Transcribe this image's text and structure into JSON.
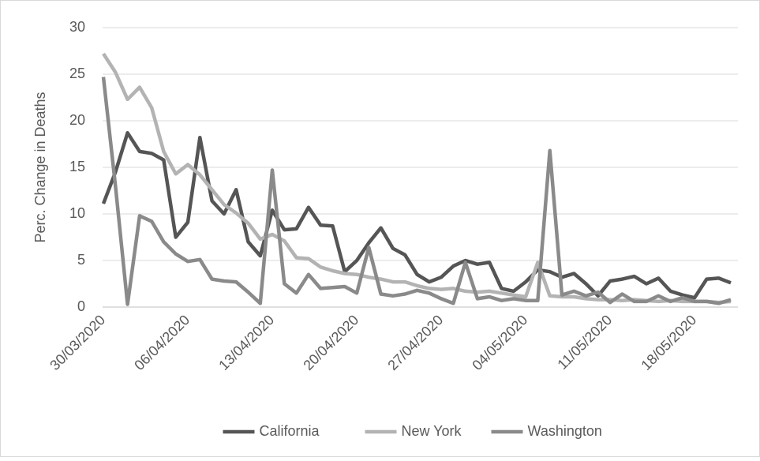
{
  "chart_data": {
    "type": "line",
    "y_label": "Perc. Change in Deaths",
    "categories": [
      "30/03/2020",
      null,
      null,
      null,
      null,
      null,
      null,
      "06/04/2020",
      null,
      null,
      null,
      null,
      null,
      null,
      "13/04/2020",
      null,
      null,
      null,
      null,
      null,
      null,
      "20/04/2020",
      null,
      null,
      null,
      null,
      null,
      null,
      "27/04/2020",
      null,
      null,
      null,
      null,
      null,
      null,
      "04/05/2020",
      null,
      null,
      null,
      null,
      null,
      null,
      "11/05/2020",
      null,
      null,
      null,
      null,
      null,
      null,
      "18/05/2020",
      null,
      null,
      null
    ],
    "series": [
      {
        "name": "California",
        "color": "#555555",
        "values": [
          11.1,
          14.5,
          18.7,
          16.7,
          16.5,
          15.8,
          7.5,
          9.1,
          18.2,
          11.4,
          10.0,
          12.6,
          7.0,
          5.5,
          10.4,
          8.3,
          8.4,
          10.7,
          8.8,
          8.7,
          3.8,
          5.0,
          6.9,
          8.5,
          6.3,
          5.6,
          3.5,
          2.7,
          3.2,
          4.4,
          5.0,
          4.6,
          4.8,
          2.0,
          1.7,
          2.7,
          4.0,
          3.8,
          3.2,
          3.6,
          2.5,
          1.2,
          2.8,
          3.0,
          3.3,
          2.5,
          3.1,
          1.7,
          1.3,
          1.0,
          3.0,
          3.1,
          2.6
        ]
      },
      {
        "name": "New York",
        "color": "#b3b3b3",
        "values": [
          27.2,
          25.2,
          22.3,
          23.6,
          21.4,
          16.7,
          14.3,
          15.3,
          14.2,
          12.6,
          11.0,
          10.1,
          9.0,
          7.3,
          7.8,
          7.1,
          5.3,
          5.2,
          4.3,
          3.9,
          3.6,
          3.5,
          3.2,
          3.0,
          2.7,
          2.7,
          2.3,
          2.0,
          1.9,
          2.0,
          1.7,
          1.6,
          1.7,
          1.5,
          1.3,
          1.1,
          4.8,
          1.2,
          1.1,
          1.1,
          0.9,
          0.8,
          0.8,
          0.7,
          0.8,
          0.7,
          0.6,
          0.7,
          0.6,
          0.6,
          0.6,
          0.5,
          0.6
        ]
      },
      {
        "name": "Washington",
        "color": "#8a8a8a",
        "values": [
          24.7,
          13.0,
          0.3,
          9.8,
          9.2,
          7.0,
          5.7,
          4.9,
          5.1,
          3.0,
          2.8,
          2.7,
          1.6,
          0.4,
          14.7,
          2.5,
          1.5,
          3.5,
          2.0,
          2.1,
          2.2,
          1.5,
          6.4,
          1.4,
          1.2,
          1.4,
          1.8,
          1.5,
          0.9,
          0.4,
          4.8,
          0.9,
          1.1,
          0.7,
          0.9,
          0.7,
          0.7,
          16.8,
          1.3,
          1.7,
          1.2,
          1.6,
          0.5,
          1.4,
          0.6,
          0.6,
          1.2,
          0.6,
          1.0,
          0.6,
          0.6,
          0.4,
          0.8
        ]
      }
    ],
    "ylim": [
      0,
      30
    ],
    "yticks": [
      0,
      5,
      10,
      15,
      20,
      25,
      30
    ],
    "grid": true,
    "legend": "bottom"
  }
}
